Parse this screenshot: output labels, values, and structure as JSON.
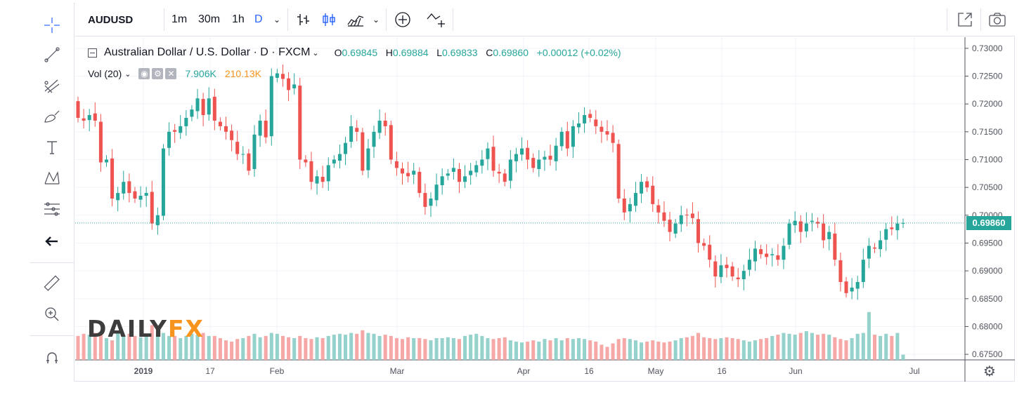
{
  "toolbar": {
    "symbol": "AUDUSD",
    "intervals": [
      "1m",
      "30m",
      "1h",
      "D"
    ],
    "active_interval": "D"
  },
  "legend": {
    "title": "Australian Dollar / U.S. Dollar · D · FXCM",
    "open_key": "O",
    "open": "0.69845",
    "high_key": "H",
    "high": "0.69884",
    "low_key": "L",
    "low": "0.69833",
    "close_key": "C",
    "close": "0.69860",
    "change": "+0.00012 (+0.02%)"
  },
  "volume_legend": {
    "label": "Vol (20)",
    "value1": "7.906K",
    "value2": "210.13K"
  },
  "logo": {
    "part1": "DAILY",
    "part2": "FX"
  },
  "price_axis": {
    "current_price_label": "0.69860",
    "ticks": [
      "0.73000",
      "0.72500",
      "0.72000",
      "0.71500",
      "0.71000",
      "0.70500",
      "0.70000",
      "0.69500",
      "0.69000",
      "0.68500",
      "0.68000",
      "0.67500"
    ]
  },
  "colors": {
    "up": "#26a69a",
    "down": "#ef5350",
    "up_vol": "#94d2cb",
    "down_vol": "#f5a8a6",
    "accent": "#2962ff"
  },
  "chart_data": {
    "type": "candlestick",
    "title": "Australian Dollar / U.S. Dollar · D · FXCM",
    "xlabel": "",
    "ylabel": "",
    "ylim": [
      0.674,
      0.732
    ],
    "x_ticks": [
      "2019",
      "17",
      "Feb",
      "Mar",
      "Apr",
      "16",
      "May",
      "16",
      "Jun",
      "Jul"
    ],
    "grid": true,
    "closes": [
      0.7175,
      0.717,
      0.718,
      0.717,
      0.7095,
      0.71,
      0.703,
      0.704,
      0.706,
      0.704,
      0.703,
      0.7035,
      0.704,
      0.6985,
      0.7,
      0.712,
      0.715,
      0.715,
      0.716,
      0.7175,
      0.719,
      0.721,
      0.718,
      0.721,
      0.717,
      0.716,
      0.715,
      0.7135,
      0.711,
      0.711,
      0.708,
      0.7145,
      0.717,
      0.714,
      0.725,
      0.7255,
      0.7245,
      0.7225,
      0.7235,
      0.71,
      0.7095,
      0.706,
      0.707,
      0.706,
      0.709,
      0.71,
      0.711,
      0.713,
      0.716,
      0.715,
      0.708,
      0.712,
      0.715,
      0.717,
      0.716,
      0.71,
      0.7085,
      0.7075,
      0.707,
      0.708,
      0.704,
      0.7015,
      0.703,
      0.7055,
      0.707,
      0.7075,
      0.7085,
      0.706,
      0.707,
      0.708,
      0.709,
      0.71,
      0.712,
      0.708,
      0.7075,
      0.706,
      0.71,
      0.711,
      0.712,
      0.71,
      0.7085,
      0.71,
      0.7105,
      0.71,
      0.7125,
      0.715,
      0.712,
      0.716,
      0.7165,
      0.718,
      0.7175,
      0.716,
      0.715,
      0.7145,
      0.713,
      0.703,
      0.7005,
      0.702,
      0.704,
      0.706,
      0.705,
      0.702,
      0.7005,
      0.699,
      0.697,
      0.6985,
      0.7,
      0.7,
      0.6995,
      0.695,
      0.6945,
      0.692,
      0.689,
      0.691,
      0.6905,
      0.689,
      0.6885,
      0.69,
      0.692,
      0.694,
      0.693,
      0.6925,
      0.693,
      0.692,
      0.6945,
      0.6985,
      0.699,
      0.697,
      0.6985,
      0.699,
      0.6985,
      0.6955,
      0.697,
      0.692,
      0.688,
      0.686,
      0.687,
      0.688,
      0.692,
      0.6945,
      0.694,
      0.6955,
      0.6975,
      0.6975,
      0.6985,
      0.6986
    ],
    "volume": {
      "values": [
        0.55,
        0.6,
        0.58,
        0.62,
        0.58,
        0.5,
        0.45,
        0.62,
        0.55,
        0.6,
        0.55,
        0.52,
        0.58,
        0.8,
        0.58,
        0.62,
        0.55,
        0.55,
        0.5,
        0.55,
        0.6,
        0.58,
        0.62,
        0.55,
        0.55,
        0.5,
        0.45,
        0.42,
        0.48,
        0.5,
        0.55,
        0.6,
        0.52,
        0.55,
        0.62,
        0.6,
        0.55,
        0.52,
        0.5,
        0.55,
        0.5,
        0.48,
        0.52,
        0.5,
        0.55,
        0.58,
        0.6,
        0.58,
        0.62,
        0.6,
        0.68,
        0.62,
        0.6,
        0.55,
        0.58,
        0.55,
        0.5,
        0.48,
        0.52,
        0.5,
        0.5,
        0.48,
        0.45,
        0.5,
        0.5,
        0.52,
        0.5,
        0.48,
        0.55,
        0.58,
        0.6,
        0.55,
        0.5,
        0.48,
        0.5,
        0.52,
        0.45,
        0.42,
        0.4,
        0.42,
        0.45,
        0.42,
        0.48,
        0.45,
        0.5,
        0.45,
        0.5,
        0.48,
        0.5,
        0.48,
        0.45,
        0.42,
        0.35,
        0.3,
        0.38,
        0.48,
        0.5,
        0.48,
        0.45,
        0.4,
        0.42,
        0.45,
        0.42,
        0.4,
        0.42,
        0.45,
        0.5,
        0.52,
        0.55,
        0.62,
        0.52,
        0.5,
        0.48,
        0.5,
        0.52,
        0.5,
        0.48,
        0.45,
        0.42,
        0.45,
        0.48,
        0.5,
        0.55,
        0.58,
        0.62,
        0.6,
        0.58,
        0.62,
        0.66,
        0.62,
        0.58,
        0.6,
        0.58,
        0.52,
        0.48,
        0.45,
        0.5,
        0.6,
        0.62,
        1.1,
        0.58,
        0.55,
        0.6,
        0.55,
        0.62,
        0.12
      ]
    }
  }
}
